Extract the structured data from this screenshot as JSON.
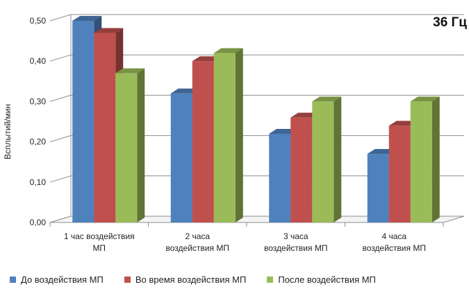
{
  "chart_data": {
    "type": "bar",
    "annotation": "36 Гц",
    "ylabel": "Всплытий/мин",
    "xlabel": "",
    "ylim": [
      0,
      0.5
    ],
    "yticks": [
      "0,00",
      "0,10",
      "0,20",
      "0,30",
      "0,40",
      "0,50"
    ],
    "grid": true,
    "legend_position": "bottom",
    "categories": [
      [
        "1 час воздействия",
        "МП"
      ],
      [
        "2 часа",
        "воздействия МП"
      ],
      [
        "3 часа",
        "воздействия МП"
      ],
      [
        "4 часа",
        "воздействия МП"
      ]
    ],
    "series": [
      {
        "name": "До воздействия МП",
        "color": "#4F81BD",
        "values": [
          0.5,
          0.32,
          0.22,
          0.17
        ]
      },
      {
        "name": "Во время воздействия МП",
        "color": "#C0504D",
        "values": [
          0.47,
          0.4,
          0.26,
          0.24
        ]
      },
      {
        "name": "После воздействия МП",
        "color": "#9BBB59",
        "values": [
          0.37,
          0.42,
          0.3,
          0.3
        ]
      }
    ]
  }
}
